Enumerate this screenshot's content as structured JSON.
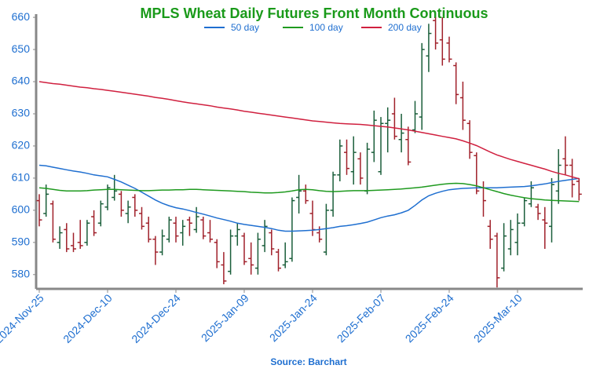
{
  "chart_data": {
    "type": "ohlc",
    "title": "MPLS Wheat Daily Futures Front Month Continuous",
    "source": "Source: Barchart",
    "categories": [
      "2024-Nov-25",
      null,
      null,
      null,
      null,
      null,
      null,
      null,
      null,
      null,
      "2024-Dec-10",
      null,
      null,
      null,
      null,
      null,
      null,
      null,
      null,
      null,
      "2024-Dec-24",
      null,
      null,
      null,
      null,
      null,
      null,
      null,
      null,
      null,
      "2025-Jan-09",
      null,
      null,
      null,
      null,
      null,
      null,
      null,
      null,
      null,
      "2025-Jan-24",
      null,
      null,
      null,
      null,
      null,
      null,
      null,
      null,
      null,
      "2025-Feb-07",
      null,
      null,
      null,
      null,
      null,
      null,
      null,
      null,
      null,
      "2025-Feb-24",
      null,
      null,
      null,
      null,
      null,
      null,
      null,
      null,
      null,
      "2025-Mar-10",
      null,
      null,
      null,
      null,
      null,
      null,
      null,
      null,
      null
    ],
    "ohlc": {
      "open": [
        603,
        599,
        602,
        590,
        594,
        589,
        590,
        590,
        598,
        596,
        601,
        604,
        605,
        599,
        604,
        599,
        596,
        591,
        587,
        591,
        596,
        593,
        597,
        594,
        597,
        593,
        590,
        583,
        581,
        592,
        592,
        585,
        582,
        589,
        593,
        587,
        583,
        585,
        604,
        606,
        599,
        593,
        587,
        600,
        611,
        618,
        612,
        616,
        606,
        618,
        612,
        627,
        630,
        622,
        622,
        625,
        629,
        648,
        659,
        653,
        652,
        645,
        635,
        627,
        617,
        607,
        595,
        592,
        582,
        588,
        590,
        596,
        602,
        601,
        597,
        595,
        606,
        616,
        614,
        609
      ],
      "high": [
        605,
        608,
        603,
        595,
        596,
        593,
        597,
        597,
        600,
        603,
        608,
        611,
        606,
        603,
        605,
        601,
        598,
        592,
        594,
        598,
        598,
        597,
        598,
        601,
        598,
        597,
        591,
        587,
        594,
        596,
        593,
        590,
        593,
        597,
        594,
        588,
        590,
        604,
        611,
        608,
        603,
        595,
        602,
        612,
        622,
        622,
        623,
        618,
        621,
        631,
        629,
        632,
        635,
        630,
        626,
        634,
        652,
        658,
        660,
        660,
        654,
        646,
        640,
        628,
        618,
        609,
        597,
        593,
        596,
        597,
        599,
        604,
        609,
        602,
        601,
        610,
        619,
        623,
        616,
        610
      ],
      "low": [
        595,
        598,
        590,
        588,
        587,
        587,
        588,
        589,
        592,
        595,
        600,
        603,
        598,
        596,
        598,
        594,
        590,
        583,
        586,
        590,
        590,
        589,
        592,
        593,
        591,
        590,
        582,
        577,
        580,
        589,
        583,
        580,
        580,
        587,
        586,
        581,
        582,
        584,
        599,
        602,
        592,
        590,
        586,
        598,
        609,
        611,
        608,
        608,
        605,
        615,
        611,
        618,
        622,
        618,
        614,
        624,
        625,
        643,
        650,
        645,
        646,
        633,
        625,
        616,
        605,
        598,
        588,
        576,
        581,
        586,
        586,
        595,
        601,
        597,
        588,
        590,
        602,
        611,
        604,
        603
      ],
      "close": [
        597,
        605,
        591,
        593,
        588,
        588,
        589,
        596,
        593,
        602,
        607,
        606,
        600,
        601,
        600,
        595,
        591,
        587,
        592,
        597,
        592,
        595,
        596,
        598,
        592,
        591,
        584,
        578,
        592,
        594,
        584,
        583,
        591,
        595,
        588,
        582,
        584,
        603,
        606,
        603,
        594,
        591,
        600,
        611,
        620,
        613,
        618,
        610,
        619,
        628,
        627,
        628,
        623,
        624,
        615,
        630,
        650,
        655,
        652,
        647,
        647,
        636,
        628,
        618,
        606,
        603,
        591,
        579,
        592,
        594,
        596,
        603,
        607,
        599,
        596,
        608,
        614,
        614,
        608,
        605
      ]
    },
    "up_color": "#1a5e3a",
    "down_color": "#a0202a",
    "series": [
      {
        "name": "50 day",
        "color": "#1f6fd0",
        "values": [
          614,
          613.8,
          613.4,
          613,
          612.6,
          612.2,
          611.9,
          611.5,
          611,
          610.7,
          610.4,
          609.6,
          608.8,
          607.8,
          606.8,
          605.6,
          604.4,
          603.2,
          602.2,
          601.4,
          600.8,
          600.4,
          599.9,
          599.3,
          598.8,
          598.2,
          597.6,
          597.1,
          596.6,
          596,
          595.6,
          595.3,
          595,
          594.7,
          594.3,
          593.8,
          593.5,
          593.5,
          593.6,
          593.7,
          593.8,
          594,
          594.3,
          594.6,
          595,
          595.2,
          595.5,
          595.9,
          596.3,
          597,
          597.7,
          598.2,
          598.6,
          599.2,
          600,
          601.5,
          603.2,
          604.5,
          605.3,
          605.9,
          606.4,
          606.6,
          606.8,
          606.9,
          607,
          607,
          607,
          607,
          607.1,
          607.2,
          607.3,
          607.4,
          607.6,
          607.9,
          608.2,
          608.6,
          609,
          609.3,
          609.6,
          609.9
        ]
      },
      {
        "name": "100 day",
        "color": "#1f9a1f",
        "values": [
          607,
          606.8,
          606.5,
          606.2,
          606,
          606,
          606,
          606.1,
          606.3,
          606.4,
          606.5,
          606.5,
          606.4,
          606.3,
          606.2,
          606.1,
          606.1,
          606.2,
          606.3,
          606.3,
          606.4,
          606.4,
          606.5,
          606.5,
          606.4,
          606.3,
          606.2,
          606.1,
          606,
          605.9,
          605.8,
          605.6,
          605.5,
          605.4,
          605.4,
          605.5,
          605.7,
          606,
          606.4,
          606.5,
          606.4,
          606.1,
          605.9,
          605.8,
          605.9,
          606,
          606.1,
          606.1,
          606.1,
          606.2,
          606.3,
          606.4,
          606.5,
          606.6,
          606.8,
          607,
          607.2,
          607.5,
          607.8,
          608.1,
          608.3,
          608.4,
          608.3,
          608,
          607.6,
          607,
          606.4,
          605.8,
          605.2,
          604.7,
          604.3,
          603.9,
          603.6,
          603.4,
          603.2,
          603.1,
          603,
          602.9,
          602.8,
          602.7
        ]
      },
      {
        "name": "200 day",
        "color": "#d0203f",
        "values": [
          640,
          639.7,
          639.4,
          639.2,
          638.9,
          638.6,
          638.3,
          638.1,
          637.8,
          637.6,
          637.3,
          637,
          636.7,
          636.4,
          636.1,
          635.8,
          635.5,
          635.1,
          634.8,
          634.5,
          634.1,
          633.7,
          633.4,
          633.1,
          632.8,
          632.5,
          632.1,
          631.8,
          631.5,
          631.2,
          630.8,
          630.5,
          630.2,
          629.9,
          629.6,
          629.3,
          629,
          628.7,
          628.4,
          628.1,
          627.8,
          627.6,
          627.4,
          627.2,
          627,
          626.9,
          626.8,
          626.7,
          626.5,
          626.3,
          626.1,
          625.9,
          625.6,
          625.3,
          625,
          624.6,
          624.2,
          623.8,
          623.4,
          623,
          622.6,
          622.2,
          621.6,
          620.9,
          620.1,
          619.1,
          618.1,
          617.2,
          616.5,
          615.8,
          615.2,
          614.6,
          614,
          613.4,
          612.8,
          612.1,
          611.5,
          611,
          610.4,
          609.8
        ]
      }
    ],
    "ylim": [
      575.8,
      661
    ],
    "yticks": [
      580,
      590,
      600,
      610,
      620,
      630,
      640,
      650,
      660
    ]
  }
}
